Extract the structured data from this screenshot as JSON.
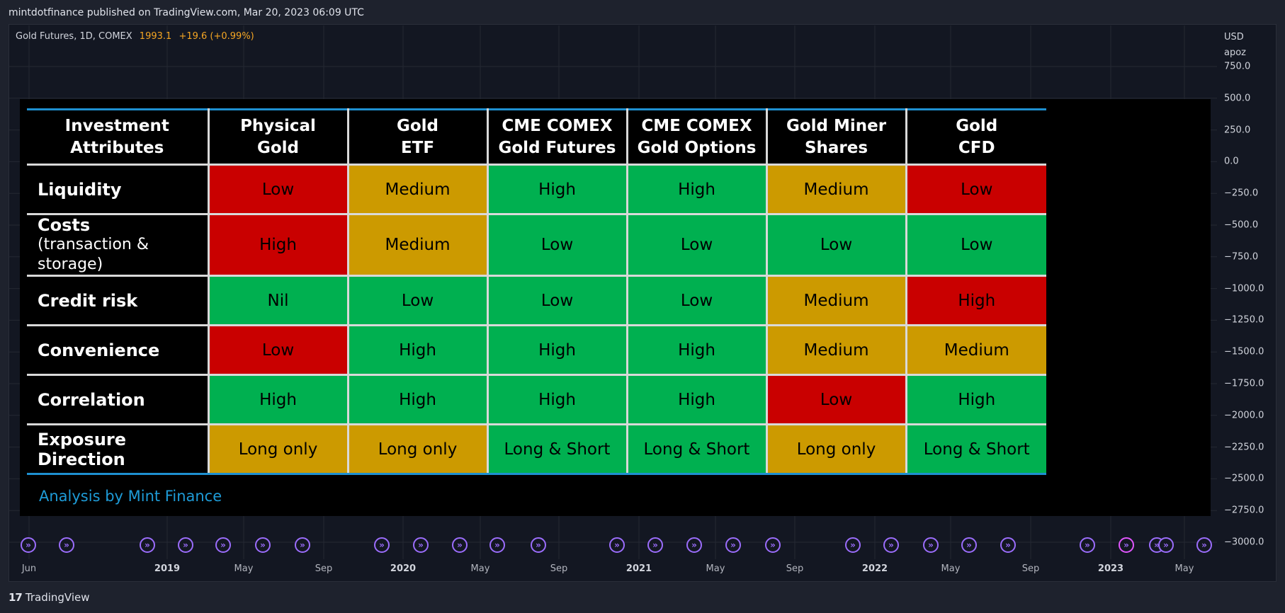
{
  "header": {
    "published_line": "mintdotfinance published on TradingView.com, Mar 20, 2023 06:09 UTC"
  },
  "legend": {
    "symbol": "Gold Futures, 1D, COMEX",
    "price": "1993.1",
    "change": "+19.6 (+0.99%)"
  },
  "axis": {
    "currency": "USD",
    "unit": "apoz",
    "y_ticks": [
      "750.0",
      "500.0",
      "250.0",
      "0.0",
      "−250.0",
      "−500.0",
      "−750.0",
      "−1000.0",
      "−1250.0",
      "−1500.0",
      "−1750.0",
      "−2000.0",
      "−2250.0",
      "−2500.0",
      "−2750.0",
      "−3000.0"
    ],
    "x_ticks": [
      {
        "label": "Jun",
        "bold": false
      },
      {
        "label": "2019",
        "bold": true
      },
      {
        "label": "May",
        "bold": false
      },
      {
        "label": "Sep",
        "bold": false
      },
      {
        "label": "2020",
        "bold": true
      },
      {
        "label": "May",
        "bold": false
      },
      {
        "label": "Sep",
        "bold": false
      },
      {
        "label": "2021",
        "bold": true
      },
      {
        "label": "May",
        "bold": false
      },
      {
        "label": "Sep",
        "bold": false
      },
      {
        "label": "2022",
        "bold": true
      },
      {
        "label": "May",
        "bold": false
      },
      {
        "label": "Sep",
        "bold": false
      },
      {
        "label": "2023",
        "bold": true
      },
      {
        "label": "May",
        "bold": false
      }
    ]
  },
  "events": {
    "icon": "dividend-arrow-icon",
    "color": "#9b6dfb"
  },
  "chart_data": {
    "type": "table",
    "title": "",
    "columns": [
      "Investment\nAttributes",
      "Physical\nGold",
      "Gold\nETF",
      "CME COMEX\nGold Futures",
      "CME COMEX\nGold Options",
      "Gold Miner\nShares",
      "Gold\nCFD"
    ],
    "rows": [
      {
        "label": "Liquidity",
        "sub": "",
        "cells": [
          {
            "text": "Low",
            "level": "red"
          },
          {
            "text": "Medium",
            "level": "amber"
          },
          {
            "text": "High",
            "level": "green"
          },
          {
            "text": "High",
            "level": "green"
          },
          {
            "text": "Medium",
            "level": "amber"
          },
          {
            "text": "Low",
            "level": "red"
          }
        ]
      },
      {
        "label": "Costs",
        "sub": "(transaction & storage)",
        "cells": [
          {
            "text": "High",
            "level": "red"
          },
          {
            "text": "Medium",
            "level": "amber"
          },
          {
            "text": "Low",
            "level": "green"
          },
          {
            "text": "Low",
            "level": "green"
          },
          {
            "text": "Low",
            "level": "green"
          },
          {
            "text": "Low",
            "level": "green"
          }
        ]
      },
      {
        "label": "Credit risk",
        "sub": "",
        "cells": [
          {
            "text": "Nil",
            "level": "green"
          },
          {
            "text": "Low",
            "level": "green"
          },
          {
            "text": "Low",
            "level": "green"
          },
          {
            "text": "Low",
            "level": "green"
          },
          {
            "text": "Medium",
            "level": "amber"
          },
          {
            "text": "High",
            "level": "red"
          }
        ]
      },
      {
        "label": "Convenience",
        "sub": "",
        "cells": [
          {
            "text": "Low",
            "level": "red"
          },
          {
            "text": "High",
            "level": "green"
          },
          {
            "text": "High",
            "level": "green"
          },
          {
            "text": "High",
            "level": "green"
          },
          {
            "text": "Medium",
            "level": "amber"
          },
          {
            "text": "Medium",
            "level": "amber"
          }
        ]
      },
      {
        "label": "Correlation",
        "sub": "",
        "cells": [
          {
            "text": "High",
            "level": "green"
          },
          {
            "text": "High",
            "level": "green"
          },
          {
            "text": "High",
            "level": "green"
          },
          {
            "text": "High",
            "level": "green"
          },
          {
            "text": "Low",
            "level": "red"
          },
          {
            "text": "High",
            "level": "green"
          }
        ]
      },
      {
        "label": "Exposure Direction",
        "sub": "",
        "cells": [
          {
            "text": "Long only",
            "level": "amber"
          },
          {
            "text": "Long only",
            "level": "amber"
          },
          {
            "text": "Long & Short",
            "level": "green"
          },
          {
            "text": "Long & Short",
            "level": "green"
          },
          {
            "text": "Long only",
            "level": "amber"
          },
          {
            "text": "Long & Short",
            "level": "green"
          }
        ]
      }
    ],
    "colors": {
      "red": "#c90000",
      "amber": "#cc9a00",
      "green": "#00b050",
      "accent": "#1e90d0"
    },
    "footnote": "Analysis by Mint Finance"
  },
  "footer": {
    "brand": "TradingView"
  }
}
